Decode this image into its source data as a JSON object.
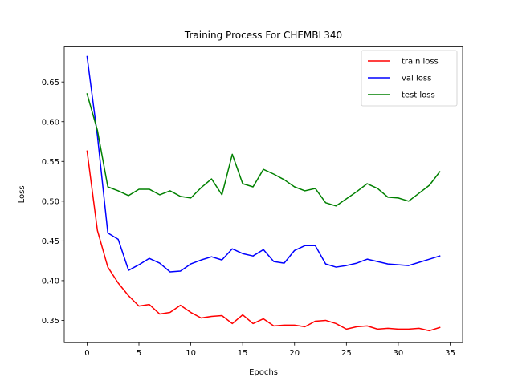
{
  "chart_data": {
    "type": "line",
    "title": "Training Process For CHEMBL340",
    "xlabel": "Epochs",
    "ylabel": "Loss",
    "xlim": [
      -2.2,
      36.2
    ],
    "ylim": [
      0.322,
      0.695
    ],
    "xticks": [
      0,
      5,
      10,
      15,
      20,
      25,
      30,
      35
    ],
    "xtick_labels": [
      "0",
      "5",
      "10",
      "15",
      "20",
      "25",
      "30",
      "35"
    ],
    "yticks": [
      0.35,
      0.4,
      0.45,
      0.5,
      0.55,
      0.6,
      0.65
    ],
    "ytick_labels": [
      "0.35",
      "0.40",
      "0.45",
      "0.50",
      "0.55",
      "0.60",
      "0.65"
    ],
    "grid": false,
    "legend_position": "upper right",
    "x": [
      0,
      1,
      2,
      3,
      4,
      5,
      6,
      7,
      8,
      9,
      10,
      11,
      12,
      13,
      14,
      15,
      16,
      17,
      18,
      19,
      20,
      21,
      22,
      23,
      24,
      25,
      26,
      27,
      28,
      29,
      30,
      31,
      32,
      33,
      34
    ],
    "series": [
      {
        "name": "train loss",
        "color": "#ff0000",
        "values": [
          0.563,
          0.463,
          0.417,
          0.397,
          0.381,
          0.368,
          0.37,
          0.358,
          0.36,
          0.369,
          0.36,
          0.353,
          0.355,
          0.356,
          0.346,
          0.357,
          0.346,
          0.352,
          0.343,
          0.344,
          0.344,
          0.342,
          0.349,
          0.35,
          0.346,
          0.339,
          0.342,
          0.343,
          0.339,
          0.34,
          0.339,
          0.339,
          0.34,
          0.337,
          0.341
        ]
      },
      {
        "name": "val loss",
        "color": "#0000ff",
        "values": [
          0.682,
          0.582,
          0.46,
          0.452,
          0.413,
          0.42,
          0.428,
          0.422,
          0.411,
          0.412,
          0.421,
          0.426,
          0.43,
          0.426,
          0.44,
          0.434,
          0.431,
          0.439,
          0.424,
          0.422,
          0.438,
          0.444,
          0.444,
          0.421,
          0.417,
          0.419,
          0.422,
          0.427,
          0.424,
          0.421,
          0.42,
          0.419,
          0.423,
          0.427,
          0.431
        ]
      },
      {
        "name": "test loss",
        "color": "#008000",
        "values": [
          0.635,
          0.589,
          0.518,
          0.513,
          0.507,
          0.515,
          0.515,
          0.508,
          0.513,
          0.506,
          0.504,
          0.517,
          0.528,
          0.508,
          0.559,
          0.522,
          0.518,
          0.54,
          0.534,
          0.527,
          0.518,
          0.513,
          0.516,
          0.498,
          0.494,
          0.503,
          0.512,
          0.522,
          0.516,
          0.505,
          0.504,
          0.5,
          0.51,
          0.52,
          0.537
        ]
      }
    ]
  }
}
